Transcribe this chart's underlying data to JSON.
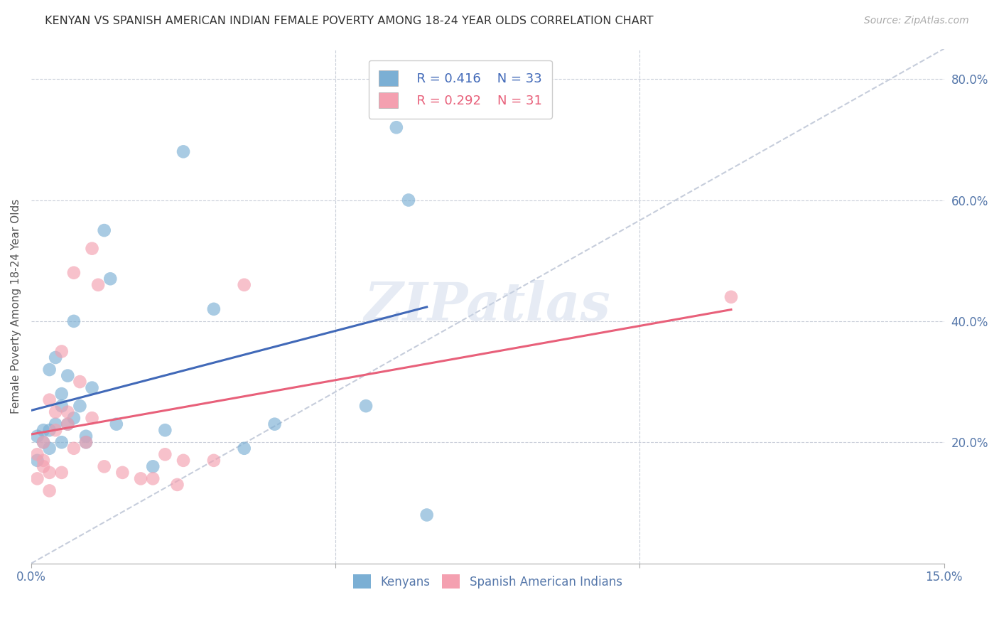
{
  "title": "KENYAN VS SPANISH AMERICAN INDIAN FEMALE POVERTY AMONG 18-24 YEAR OLDS CORRELATION CHART",
  "source": "Source: ZipAtlas.com",
  "ylabel": "Female Poverty Among 18-24 Year Olds",
  "xlim": [
    0.0,
    0.15
  ],
  "ylim": [
    0.0,
    0.85
  ],
  "watermark": "ZIPatlas",
  "legend_r1": "R = 0.416",
  "legend_n1": "N = 33",
  "legend_r2": "R = 0.292",
  "legend_n2": "N = 31",
  "blue_color": "#7bafd4",
  "pink_color": "#f4a0b0",
  "blue_line_color": "#4169b8",
  "pink_line_color": "#e8607a",
  "dashed_line_color": "#c0c8d8",
  "kenyans_x": [
    0.001,
    0.001,
    0.002,
    0.002,
    0.003,
    0.003,
    0.003,
    0.004,
    0.004,
    0.005,
    0.005,
    0.005,
    0.006,
    0.006,
    0.007,
    0.007,
    0.008,
    0.009,
    0.009,
    0.01,
    0.012,
    0.013,
    0.014,
    0.02,
    0.022,
    0.025,
    0.03,
    0.035,
    0.04,
    0.055,
    0.06,
    0.062,
    0.065
  ],
  "kenyans_y": [
    0.17,
    0.21,
    0.2,
    0.22,
    0.22,
    0.19,
    0.32,
    0.34,
    0.23,
    0.26,
    0.2,
    0.28,
    0.31,
    0.23,
    0.24,
    0.4,
    0.26,
    0.21,
    0.2,
    0.29,
    0.55,
    0.47,
    0.23,
    0.16,
    0.22,
    0.68,
    0.42,
    0.19,
    0.23,
    0.26,
    0.72,
    0.6,
    0.08
  ],
  "spanish_x": [
    0.001,
    0.001,
    0.002,
    0.002,
    0.002,
    0.003,
    0.003,
    0.003,
    0.004,
    0.004,
    0.005,
    0.005,
    0.006,
    0.006,
    0.007,
    0.007,
    0.008,
    0.009,
    0.01,
    0.01,
    0.011,
    0.012,
    0.015,
    0.018,
    0.02,
    0.022,
    0.024,
    0.025,
    0.03,
    0.035,
    0.115
  ],
  "spanish_y": [
    0.18,
    0.14,
    0.17,
    0.16,
    0.2,
    0.27,
    0.15,
    0.12,
    0.22,
    0.25,
    0.35,
    0.15,
    0.23,
    0.25,
    0.48,
    0.19,
    0.3,
    0.2,
    0.24,
    0.52,
    0.46,
    0.16,
    0.15,
    0.14,
    0.14,
    0.18,
    0.13,
    0.17,
    0.17,
    0.46,
    0.44
  ]
}
